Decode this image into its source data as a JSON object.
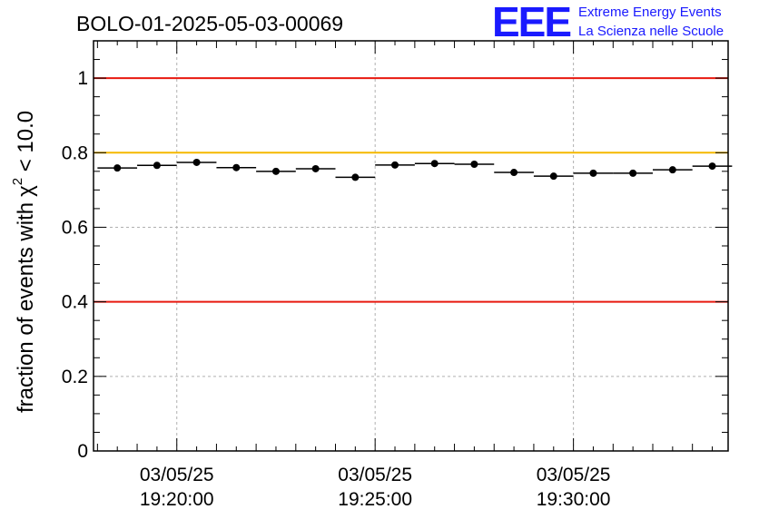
{
  "chart_data": {
    "type": "scatter",
    "title": "BOLO-01-2025-05-03-00069",
    "ylabel": "fraction of events with",
    "ylabel_symbol": "χ",
    "ylabel_exponent": "2",
    "ylabel_suffix": " < 10.0",
    "xlabel": "",
    "ylim": [
      0,
      1.1
    ],
    "y_ticks": [
      "0",
      "0.2",
      "0.4",
      "0.6",
      "0.8",
      "1"
    ],
    "y_tick_values": [
      0,
      0.2,
      0.4,
      0.6,
      0.8,
      1.0
    ],
    "x_tick_labels": [
      {
        "minute": 20,
        "date": "03/05/25",
        "time": "19:20:00"
      },
      {
        "minute": 25,
        "date": "03/05/25",
        "time": "19:25:00"
      },
      {
        "minute": 30,
        "date": "03/05/25",
        "time": "19:30:00"
      }
    ],
    "x_range_minutes": [
      17.9,
      33.9
    ],
    "grid": true,
    "reference_lines": [
      {
        "y": 1.0,
        "color": "#e8190f"
      },
      {
        "y": 0.8,
        "color": "#f5b800"
      },
      {
        "y": 0.4,
        "color": "#e8190f"
      }
    ],
    "bin_width_minutes": 1,
    "points": [
      {
        "x": 18.5,
        "y": 0.759
      },
      {
        "x": 19.5,
        "y": 0.766
      },
      {
        "x": 20.5,
        "y": 0.774
      },
      {
        "x": 21.5,
        "y": 0.76
      },
      {
        "x": 22.5,
        "y": 0.75
      },
      {
        "x": 23.5,
        "y": 0.757
      },
      {
        "x": 24.5,
        "y": 0.734
      },
      {
        "x": 25.5,
        "y": 0.767
      },
      {
        "x": 26.5,
        "y": 0.771
      },
      {
        "x": 27.5,
        "y": 0.769
      },
      {
        "x": 28.5,
        "y": 0.747
      },
      {
        "x": 29.5,
        "y": 0.737
      },
      {
        "x": 30.5,
        "y": 0.745
      },
      {
        "x": 31.5,
        "y": 0.745
      },
      {
        "x": 32.5,
        "y": 0.754
      },
      {
        "x": 33.5,
        "y": 0.764
      }
    ]
  },
  "logo": {
    "mark": "EEE",
    "line1": "Extreme Energy Events",
    "line2": "La Scienza nelle Scuole",
    "color": "#1a1aff"
  }
}
